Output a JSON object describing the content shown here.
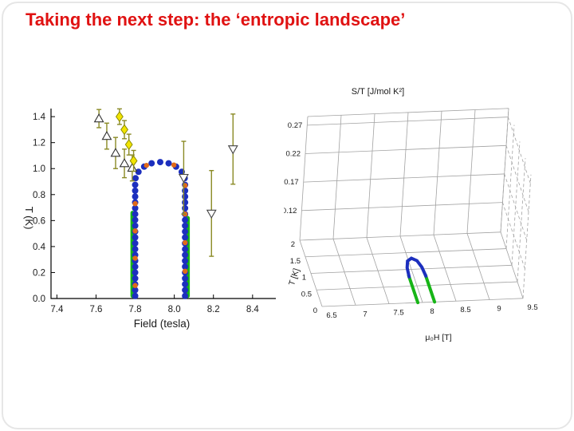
{
  "slide": {
    "title": "Taking the next step: the ‘entropic landscape’",
    "title_color": "#e01212",
    "background": "#ffffff"
  },
  "chart_data": [
    {
      "type": "scatter",
      "name": "field-temperature-phase-diagram",
      "xlabel": "Field (tesla)",
      "ylabel": "T (K)",
      "xlim": [
        7.37,
        8.47
      ],
      "ylim": [
        0,
        1.45
      ],
      "xticks": [
        "7.4",
        "7.6",
        "7.8",
        "8.0",
        "8.2",
        "8.4"
      ],
      "yticks": [
        "0.0",
        "0.2",
        "0.4",
        "0.6",
        "0.8",
        "1.0",
        "1.2",
        "1.4"
      ],
      "series": [
        {
          "name": "left-transition-line",
          "kind": "line",
          "color": "#17b517",
          "width": 5,
          "points": [
            [
              7.786,
              0.02
            ],
            [
              7.786,
              0.66
            ]
          ]
        },
        {
          "name": "right-transition-line",
          "kind": "line",
          "color": "#17b517",
          "width": 5,
          "points": [
            [
              8.069,
              0.02
            ],
            [
              8.069,
              0.62
            ]
          ]
        },
        {
          "name": "phase-boundary-dome",
          "kind": "dots",
          "color": "#1c2fbe",
          "radius": 4,
          "points": [
            [
              7.8,
              0.02
            ],
            [
              7.8,
              0.065
            ],
            [
              7.8,
              0.11
            ],
            [
              7.8,
              0.155
            ],
            [
              7.8,
              0.2
            ],
            [
              7.8,
              0.245
            ],
            [
              7.8,
              0.29
            ],
            [
              7.8,
              0.335
            ],
            [
              7.8,
              0.38
            ],
            [
              7.8,
              0.425
            ],
            [
              7.8,
              0.47
            ],
            [
              7.8,
              0.515
            ],
            [
              7.8,
              0.56
            ],
            [
              7.8,
              0.605
            ],
            [
              7.8,
              0.65
            ],
            [
              7.8,
              0.695
            ],
            [
              7.8,
              0.74
            ],
            [
              7.8,
              0.785
            ],
            [
              7.8,
              0.83
            ],
            [
              7.8,
              0.875
            ],
            [
              7.802,
              0.926
            ],
            [
              7.817,
              0.975
            ],
            [
              7.846,
              1.015
            ],
            [
              7.884,
              1.041
            ],
            [
              7.928,
              1.05
            ],
            [
              7.971,
              1.041
            ],
            [
              8.009,
              1.015
            ],
            [
              8.038,
              0.975
            ],
            [
              8.053,
              0.926
            ],
            [
              8.055,
              0.875
            ],
            [
              8.055,
              0.83
            ],
            [
              8.055,
              0.785
            ],
            [
              8.055,
              0.74
            ],
            [
              8.055,
              0.695
            ],
            [
              8.055,
              0.65
            ],
            [
              8.055,
              0.605
            ],
            [
              8.055,
              0.56
            ],
            [
              8.055,
              0.515
            ],
            [
              8.055,
              0.47
            ],
            [
              8.055,
              0.425
            ],
            [
              8.055,
              0.38
            ],
            [
              8.055,
              0.335
            ],
            [
              8.055,
              0.29
            ],
            [
              8.055,
              0.245
            ],
            [
              8.055,
              0.2
            ],
            [
              8.055,
              0.155
            ],
            [
              8.055,
              0.11
            ],
            [
              8.055,
              0.065
            ],
            [
              8.055,
              0.02
            ]
          ]
        },
        {
          "name": "inner-data-points",
          "kind": "dots",
          "color": "#e06a1a",
          "radius": 3.2,
          "points": [
            [
              7.8,
              0.1
            ],
            [
              7.8,
              0.31
            ],
            [
              7.8,
              0.52
            ],
            [
              7.8,
              0.73
            ],
            [
              7.858,
              1.025
            ],
            [
              7.998,
              1.028
            ],
            [
              8.055,
              0.21
            ],
            [
              8.055,
              0.43
            ],
            [
              8.055,
              0.65
            ],
            [
              8.055,
              0.87
            ]
          ]
        },
        {
          "name": "open-up-triangles",
          "kind": "tri-up",
          "edge": "#333333",
          "size": 5.5,
          "err_color": "#8a8a25",
          "points": [
            [
              7.615,
              1.385,
              0.07
            ],
            [
              7.655,
              1.25,
              0.1
            ],
            [
              7.7,
              1.12,
              0.12
            ],
            [
              7.745,
              1.04,
              0.11
            ],
            [
              7.785,
              1.005,
              0.1
            ]
          ]
        },
        {
          "name": "yellow-diamonds",
          "kind": "diamond",
          "edge": "#8a8a00",
          "fill": "#f2e400",
          "size": 6,
          "err_color": "#8a8a25",
          "points": [
            [
              7.72,
              1.4,
              0.06
            ],
            [
              7.745,
              1.3,
              0.07
            ],
            [
              7.768,
              1.185,
              0.08
            ],
            [
              7.792,
              1.06,
              0.08
            ]
          ]
        },
        {
          "name": "open-down-triangles",
          "kind": "tri-down",
          "edge": "#444444",
          "size": 5.5,
          "err_color": "#8a8a25",
          "points": [
            [
              8.048,
              0.93,
              0.28
            ],
            [
              8.19,
              0.655,
              0.33
            ],
            [
              8.3,
              1.15,
              0.27
            ]
          ]
        }
      ]
    },
    {
      "type": "surface3d",
      "name": "entropic-landscape",
      "title": "S/T [J/mol K²]",
      "zticks": [
        "0.27",
        "0.22",
        "0.17",
        "0.12"
      ],
      "tticks": [
        "2",
        "1.5",
        "1",
        "0.5",
        "0"
      ],
      "hticks": [
        "6.5",
        "7",
        "7.5",
        "8",
        "8.5",
        "9",
        "9.5"
      ],
      "tlabel": "T [K]",
      "hlabel": "μ₀H [T]",
      "hlim": [
        6.5,
        9.5
      ],
      "tlim": [
        0,
        2
      ],
      "zlim": [
        0.12,
        0.27
      ],
      "curves": [
        {
          "name": "left-transition-curve",
          "color": "#17b517",
          "width": 4,
          "points": [
            [
              7.93,
              0.0
            ],
            [
              7.93,
              0.82
            ]
          ]
        },
        {
          "name": "right-transition-curve",
          "color": "#17b517",
          "width": 4,
          "points": [
            [
              8.18,
              0.0
            ],
            [
              8.18,
              0.82
            ]
          ]
        },
        {
          "name": "dome-arc-curve",
          "color": "#1c2fbe",
          "width": 4,
          "points": [
            [
              7.93,
              0.78
            ],
            [
              7.945,
              1.05
            ],
            [
              7.985,
              1.25
            ],
            [
              8.055,
              1.33
            ],
            [
              8.125,
              1.25
            ],
            [
              8.165,
              1.05
            ],
            [
              8.18,
              0.78
            ]
          ]
        }
      ]
    }
  ]
}
